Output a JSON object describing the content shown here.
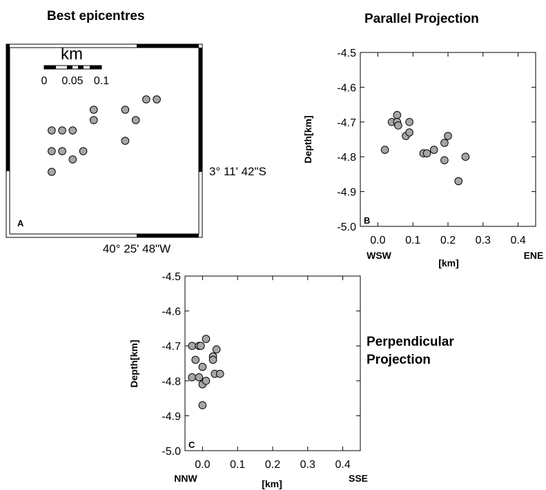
{
  "chart_data": [
    {
      "type": "scatter",
      "panel_label": "A",
      "title": "Best epicentres",
      "scale_label": "km",
      "scale_ticks": [
        "0",
        "0.05",
        "0.1"
      ],
      "lat_label": "3° 11' 42\"S",
      "lon_label": "40° 25' 48\"W",
      "x_range_km": [
        0.0,
        0.45
      ],
      "y_range_km": [
        0.0,
        0.45
      ],
      "points": [
        {
          "x": 0.1,
          "y": 0.25
        },
        {
          "x": 0.125,
          "y": 0.25
        },
        {
          "x": 0.15,
          "y": 0.25
        },
        {
          "x": 0.1,
          "y": 0.2
        },
        {
          "x": 0.125,
          "y": 0.2
        },
        {
          "x": 0.175,
          "y": 0.2
        },
        {
          "x": 0.15,
          "y": 0.18
        },
        {
          "x": 0.1,
          "y": 0.15
        },
        {
          "x": 0.2,
          "y": 0.3
        },
        {
          "x": 0.2,
          "y": 0.275
        },
        {
          "x": 0.275,
          "y": 0.3
        },
        {
          "x": 0.3,
          "y": 0.275
        },
        {
          "x": 0.275,
          "y": 0.225
        },
        {
          "x": 0.325,
          "y": 0.325
        },
        {
          "x": 0.35,
          "y": 0.325
        }
      ]
    },
    {
      "type": "scatter",
      "panel_label": "B",
      "title": "Parallel Projection",
      "xlabel": "[km]",
      "ylabel": "Depth[km]",
      "x_end_left": "WSW",
      "x_end_right": "ENE",
      "xlim": [
        -0.05,
        0.45
      ],
      "ylim": [
        -5.0,
        -4.5
      ],
      "xticks": [
        "0.0",
        "0.1",
        "0.2",
        "0.3",
        "0.4"
      ],
      "yticks": [
        "-4.5",
        "-4.6",
        "-4.7",
        "-4.8",
        "-4.9",
        "-5.0"
      ],
      "points": [
        {
          "x": 0.02,
          "y": -4.78
        },
        {
          "x": 0.04,
          "y": -4.7
        },
        {
          "x": 0.055,
          "y": -4.68
        },
        {
          "x": 0.055,
          "y": -4.7
        },
        {
          "x": 0.058,
          "y": -4.71
        },
        {
          "x": 0.08,
          "y": -4.74
        },
        {
          "x": 0.09,
          "y": -4.7
        },
        {
          "x": 0.09,
          "y": -4.73
        },
        {
          "x": 0.13,
          "y": -4.79
        },
        {
          "x": 0.14,
          "y": -4.79
        },
        {
          "x": 0.16,
          "y": -4.78
        },
        {
          "x": 0.19,
          "y": -4.76
        },
        {
          "x": 0.19,
          "y": -4.81
        },
        {
          "x": 0.2,
          "y": -4.74
        },
        {
          "x": 0.23,
          "y": -4.87
        },
        {
          "x": 0.25,
          "y": -4.8
        }
      ]
    },
    {
      "type": "scatter",
      "panel_label": "C",
      "title": "Perpendicular\nProjection",
      "title_lines": [
        "Perpendicular",
        "Projection"
      ],
      "xlabel": "[km]",
      "ylabel": "Depth[km]",
      "x_end_left": "NNW",
      "x_end_right": "SSE",
      "xlim": [
        -0.05,
        0.45
      ],
      "ylim": [
        -5.0,
        -4.5
      ],
      "xticks": [
        "0.0",
        "0.1",
        "0.2",
        "0.3",
        "0.4"
      ],
      "yticks": [
        "-4.5",
        "-4.6",
        "-4.7",
        "-4.8",
        "-4.9",
        "-5.0"
      ],
      "points": [
        {
          "x": -0.03,
          "y": -4.7
        },
        {
          "x": -0.01,
          "y": -4.7
        },
        {
          "x": -0.005,
          "y": -4.7
        },
        {
          "x": 0.01,
          "y": -4.68
        },
        {
          "x": -0.02,
          "y": -4.74
        },
        {
          "x": 0.0,
          "y": -4.76
        },
        {
          "x": -0.03,
          "y": -4.79
        },
        {
          "x": -0.01,
          "y": -4.79
        },
        {
          "x": 0.0,
          "y": -4.81
        },
        {
          "x": 0.01,
          "y": -4.8
        },
        {
          "x": 0.03,
          "y": -4.73
        },
        {
          "x": 0.03,
          "y": -4.74
        },
        {
          "x": 0.04,
          "y": -4.71
        },
        {
          "x": 0.035,
          "y": -4.78
        },
        {
          "x": 0.05,
          "y": -4.78
        },
        {
          "x": 0.0,
          "y": -4.87
        }
      ]
    }
  ],
  "colors": {
    "marker_fill": "#a6a6a6",
    "marker_stroke": "#000000",
    "frame": "#000000"
  }
}
